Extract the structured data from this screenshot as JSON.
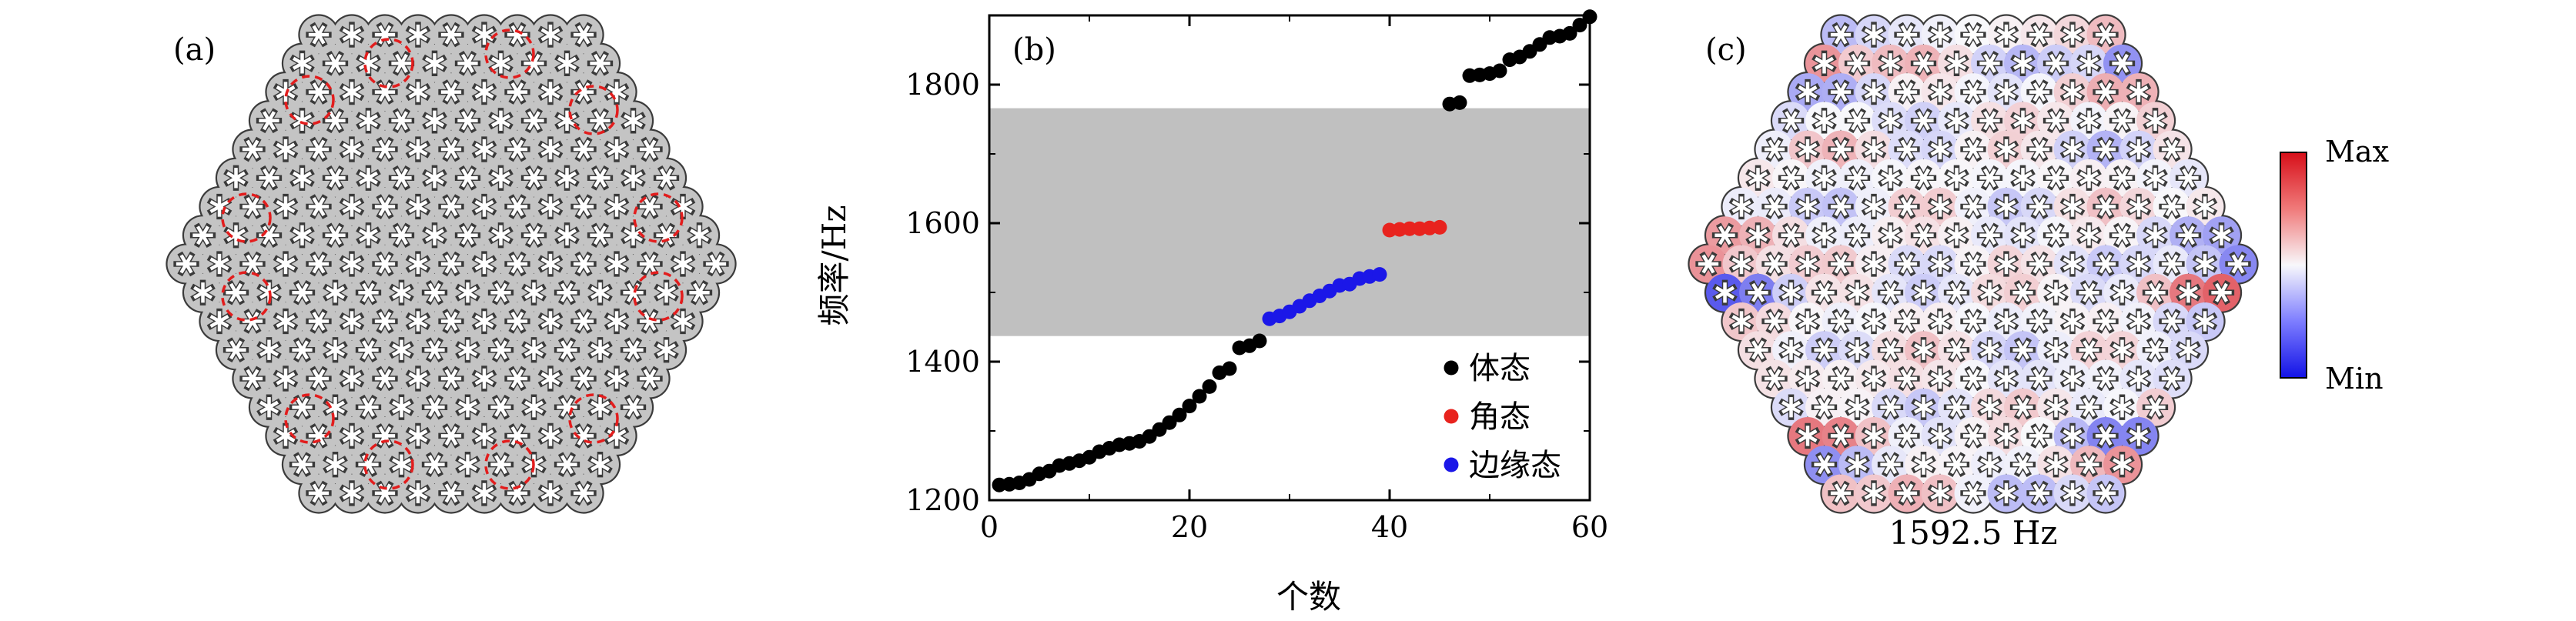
{
  "panels": {
    "a": {
      "label": "(a)"
    },
    "b": {
      "label": "(b)"
    },
    "c": {
      "label": "(c)",
      "caption": "1592.5 Hz",
      "colorbar": {
        "max": "Max",
        "min": "Min"
      }
    }
  },
  "chart_data": {
    "type": "scatter",
    "title": "",
    "xlabel": "个数",
    "ylabel": "频率/Hz",
    "xlim": [
      0,
      60
    ],
    "ylim": [
      1200,
      1900
    ],
    "xticks": [
      0,
      20,
      40,
      60
    ],
    "yticks": [
      1200,
      1400,
      1600,
      1800
    ],
    "xtick_labels": [
      "0",
      "20",
      "40",
      "60"
    ],
    "ytick_labels": [
      "1200",
      "1400",
      "1600",
      "1800"
    ],
    "bandgap": [
      1437,
      1766
    ],
    "legend_position": "bottom-right",
    "series": [
      {
        "name": "体态",
        "color": "#000000",
        "x": [
          1,
          2,
          3,
          4,
          5,
          6,
          7,
          8,
          9,
          10,
          11,
          12,
          13,
          14,
          15,
          16,
          17,
          18,
          19,
          20,
          21,
          22,
          23,
          24,
          25,
          26,
          27,
          46,
          47,
          48,
          49,
          50,
          51,
          52,
          53,
          54,
          55,
          56,
          57,
          58,
          59,
          60
        ],
        "y": [
          1222,
          1223,
          1225,
          1230,
          1238,
          1242,
          1250,
          1253,
          1257,
          1262,
          1270,
          1275,
          1280,
          1282,
          1285,
          1292,
          1302,
          1312,
          1323,
          1336,
          1350,
          1364,
          1384,
          1390,
          1420,
          1423,
          1430,
          1772,
          1774,
          1813,
          1814,
          1816,
          1820,
          1836,
          1840,
          1848,
          1858,
          1868,
          1870,
          1874,
          1886,
          1898
        ]
      },
      {
        "name": "角态",
        "color": "#e8231e",
        "x": [
          40,
          41,
          42,
          43,
          44,
          45
        ],
        "y": [
          1590,
          1591,
          1592,
          1592,
          1593,
          1594
        ]
      },
      {
        "name": "边缘态",
        "color": "#1b17e8",
        "x": [
          28,
          29,
          30,
          31,
          32,
          33,
          34,
          35,
          36,
          37,
          38,
          39
        ],
        "y": [
          1462,
          1466,
          1472,
          1480,
          1488,
          1495,
          1502,
          1510,
          1512,
          1520,
          1523,
          1526
        ]
      }
    ]
  }
}
